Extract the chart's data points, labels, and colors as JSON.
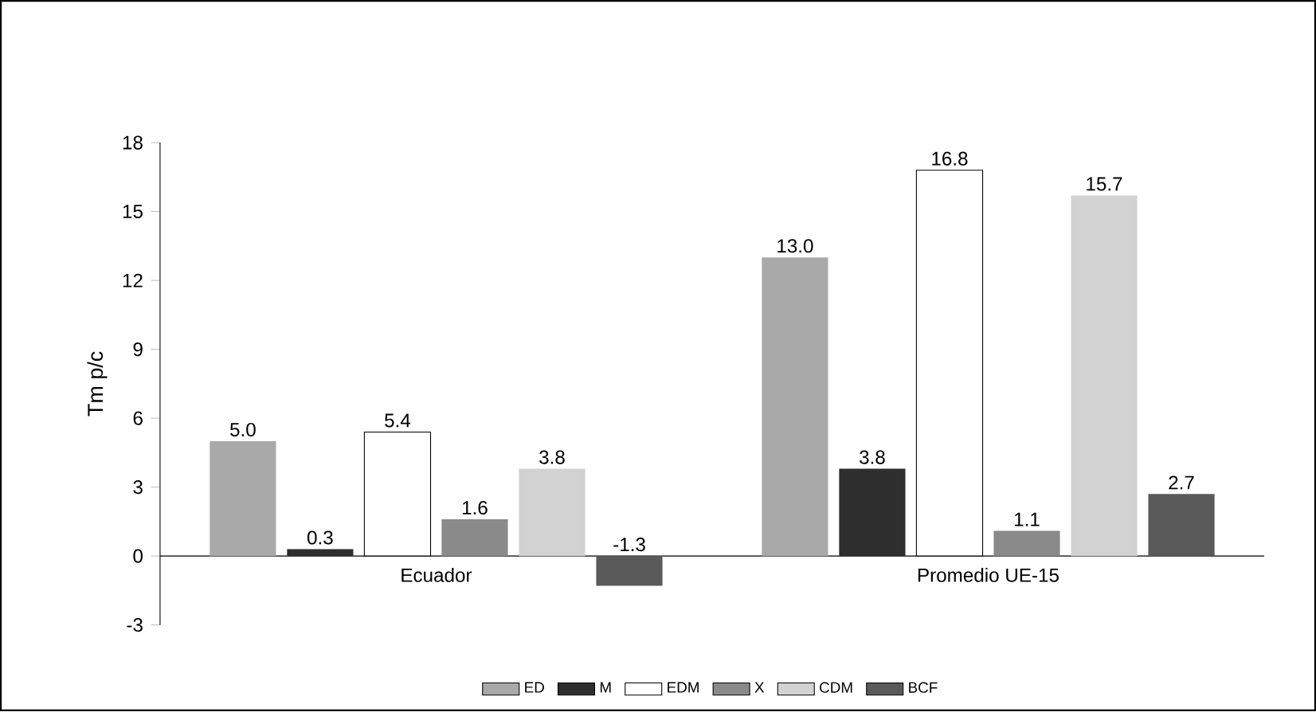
{
  "chart_data": {
    "type": "bar",
    "ylabel": "Tm p/c",
    "categories": [
      "Ecuador",
      "Promedio UE-15"
    ],
    "series": [
      {
        "name": "ED",
        "color": "#a9a9a9",
        "values": [
          5.0,
          13.0
        ],
        "value_labels": [
          "5.0",
          "13.0"
        ]
      },
      {
        "name": "M",
        "color": "#2e2e2e",
        "values": [
          0.3,
          3.8
        ],
        "value_labels": [
          "0.3",
          "3.8"
        ]
      },
      {
        "name": "EDM",
        "color": "#ffffff",
        "values": [
          5.4,
          16.8
        ],
        "value_labels": [
          "5.4",
          "16.8"
        ]
      },
      {
        "name": "X",
        "color": "#8a8a8a",
        "values": [
          1.6,
          1.1
        ],
        "value_labels": [
          "1.6",
          "1.1"
        ]
      },
      {
        "name": "CDM",
        "color": "#d2d2d2",
        "values": [
          3.8,
          15.7
        ],
        "value_labels": [
          "3.8",
          "15.7"
        ]
      },
      {
        "name": "BCF",
        "color": "#5a5a5a",
        "values": [
          -1.3,
          2.7
        ],
        "value_labels": [
          "-1.3",
          "2.7"
        ]
      }
    ],
    "ylim": [
      -3,
      18
    ],
    "yticks": [
      -3,
      0,
      3,
      6,
      9,
      12,
      15,
      18
    ],
    "grid": false,
    "legend": "bottom"
  }
}
